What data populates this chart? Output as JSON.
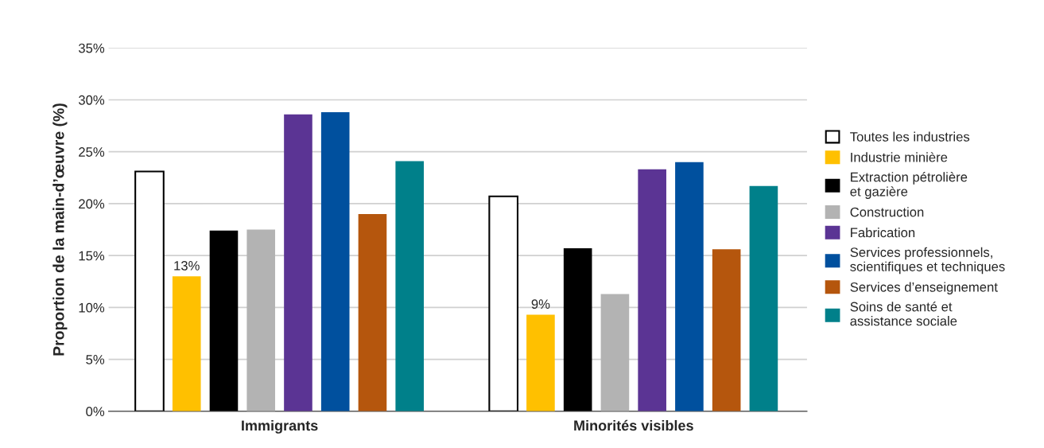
{
  "chart_data": {
    "type": "bar",
    "ylabel": "Proportion de la main-d’œuvre (%)",
    "categories": [
      "Immigrants",
      "Minorités visibles"
    ],
    "series": [
      {
        "name": "Toutes les industries",
        "color": "#ffffff",
        "values": [
          23.1,
          20.7
        ]
      },
      {
        "name": "Industrie minière",
        "color": "#ffc000",
        "values": [
          13,
          9.3
        ],
        "value_labels": [
          "13%",
          "9%"
        ]
      },
      {
        "name": "Extraction pétrolière\net gazière",
        "color": "#000000",
        "values": [
          17.4,
          15.7
        ]
      },
      {
        "name": "Construction",
        "color": "#b3b3b3",
        "values": [
          17.5,
          11.3
        ]
      },
      {
        "name": "Fabrication",
        "color": "#5b3494",
        "values": [
          28.6,
          23.3
        ]
      },
      {
        "name": "Services professionnels,\nscientifiques et techniques",
        "color": "#00509e",
        "values": [
          28.8,
          24.0
        ]
      },
      {
        "name": "Services d’enseignement",
        "color": "#b5560d",
        "values": [
          19.0,
          15.6
        ]
      },
      {
        "name": "Soins de santé et\nassistance sociale",
        "color": "#00808a",
        "values": [
          24.1,
          21.7
        ]
      }
    ],
    "ylim": [
      0,
      35
    ],
    "yticks": [
      {
        "value": 0,
        "label": "0%"
      },
      {
        "value": 5,
        "label": "5%"
      },
      {
        "value": 10,
        "label": "10%"
      },
      {
        "value": 15,
        "label": "15%"
      },
      {
        "value": 20,
        "label": "20%"
      },
      {
        "value": 25,
        "label": "25%"
      },
      {
        "value": 30,
        "label": "30%"
      },
      {
        "value": 35,
        "label": "35%"
      }
    ],
    "grid": "y",
    "legend": "right"
  }
}
